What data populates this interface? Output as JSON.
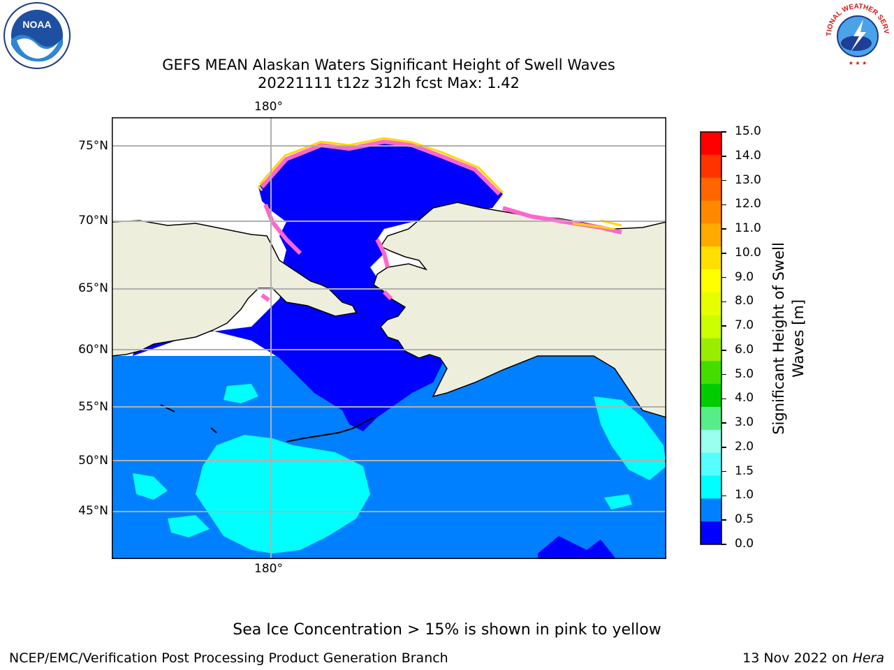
{
  "header": {
    "title_line1": "GEFS MEAN Alaskan Waters Significant Height of Swell Waves",
    "title_line2": "20221111 t12z 312h fcst   Max: 1.42"
  },
  "logos": {
    "noaa_text": "NOAA",
    "nws_text": "NATIONAL WEATHER SERVICE"
  },
  "map": {
    "lat_labels": [
      "75°N",
      "70°N",
      "65°N",
      "60°N",
      "55°N",
      "50°N",
      "45°N"
    ],
    "lon_label_top": "180°",
    "lon_label_bottom": "180°",
    "colors": {
      "land": "#eeeedc",
      "ocean_0_5": "#0000ff",
      "ocean_0_5_1": "#0080ff",
      "ocean_1_1_5": "#00ffff",
      "ice_pink": "#ff66cc",
      "ice_yellow": "#ffd700"
    }
  },
  "colorbar": {
    "title_line1": "Significant Height of Swell",
    "title_line2": "Waves [m]",
    "ticks": [
      "15.0",
      "14.0",
      "13.0",
      "12.0",
      "11.0",
      "10.0",
      "9.0",
      "8.0",
      "7.0",
      "6.0",
      "5.0",
      "4.0",
      "3.0",
      "2.0",
      "1.5",
      "1.0",
      "0.5",
      "0.0"
    ],
    "colors": [
      "#ff0000",
      "#ff3300",
      "#ff6600",
      "#ff8800",
      "#ffaa00",
      "#ffe000",
      "#ffff00",
      "#e6ff00",
      "#ccff00",
      "#99ee00",
      "#44dd00",
      "#00cc00",
      "#55ee88",
      "#99ffee",
      "#55ffff",
      "#00ffff",
      "#0080ff",
      "#0000ff"
    ]
  },
  "note": "Sea Ice Concentration > 15% is shown in pink to yellow",
  "footer": {
    "left": "NCEP/EMC/Verification Post Processing Product Generation Branch",
    "right_date": "13 Nov 2022 on ",
    "right_host": "Hera"
  }
}
